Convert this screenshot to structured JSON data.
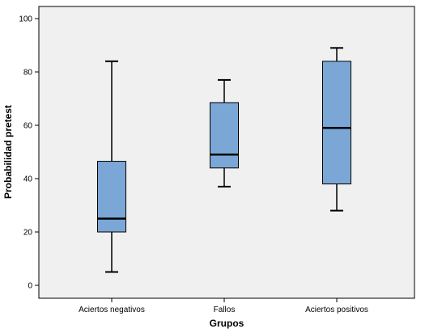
{
  "chart_data": {
    "type": "boxplot",
    "xlabel": "Grupos",
    "ylabel": "Probabilidad pretest",
    "ylim": [
      0,
      100
    ],
    "yticks": [
      0,
      20,
      40,
      60,
      80,
      100
    ],
    "categories": [
      "Aciertos negativos",
      "Fallos",
      "Aciertos positivos"
    ],
    "boxes": [
      {
        "min": 5,
        "q1": 20,
        "median": 25,
        "q3": 46.5,
        "max": 84
      },
      {
        "min": 37,
        "q1": 44,
        "median": 49,
        "q3": 68.5,
        "max": 77
      },
      {
        "min": 28,
        "q1": 38,
        "median": 59,
        "q3": 84,
        "max": 89
      }
    ],
    "box_color": "#7ba7d6",
    "plot_background": "#f0f0f0",
    "grid": false
  }
}
